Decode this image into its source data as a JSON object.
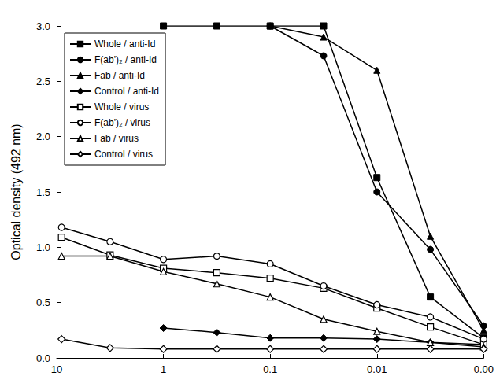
{
  "chart_data": {
    "type": "line",
    "y_label": "Optical density (492 nm)",
    "log": "x",
    "grid": false,
    "legend": "upper left",
    "xlim": [
      10,
      0.001
    ],
    "xticks": [
      10,
      1,
      0.1,
      0.01,
      {
        "value": 0.001,
        "label": "0.00"
      }
    ],
    "ylim": [
      0,
      3
    ],
    "yticks": [
      {
        "value": 0,
        "label": "0.0"
      },
      {
        "value": 0.5,
        "label": "0.5"
      },
      {
        "value": 1,
        "label": "1.0"
      },
      {
        "value": 1.5,
        "label": "1.5"
      },
      {
        "value": 2,
        "label": "2.0"
      },
      {
        "value": 2.5,
        "label": "2.5"
      },
      {
        "value": 3,
        "label": "3.0"
      }
    ],
    "series": [
      {
        "name": "Whole / anti-Id",
        "color": "#000000",
        "marker": "filled-square",
        "x": [
          1,
          0.316,
          0.1,
          0.0316,
          0.01,
          0.00316,
          0.001
        ],
        "values": [
          3.0,
          3.0,
          3.0,
          3.0,
          1.63,
          0.55,
          0.18
        ]
      },
      {
        "name": "F(ab')₂ / anti-Id",
        "color": "#000000",
        "marker": "filled-circle",
        "x": [
          0.1,
          0.0316,
          0.01,
          0.00316,
          0.001
        ],
        "values": [
          3.0,
          2.73,
          1.5,
          0.98,
          0.29
        ]
      },
      {
        "name": "Fab / anti-Id",
        "color": "#000000",
        "marker": "filled-triangle",
        "x": [
          0.1,
          0.0316,
          0.01,
          0.00316,
          0.001
        ],
        "values": [
          3.0,
          2.9,
          2.6,
          1.1,
          0.25
        ]
      },
      {
        "name": "Control / anti-Id",
        "color": "#000000",
        "marker": "filled-diamond",
        "x": [
          1,
          0.316,
          0.1,
          0.0316,
          0.01,
          0.00316,
          0.001
        ],
        "values": [
          0.27,
          0.23,
          0.18,
          0.18,
          0.17,
          0.14,
          0.12
        ]
      },
      {
        "name": "Whole / virus",
        "color": "#000000",
        "marker": "open-square",
        "x": [
          9,
          3.16,
          1,
          0.316,
          0.1,
          0.0316,
          0.01,
          0.00316,
          0.001
        ],
        "values": [
          1.09,
          0.93,
          0.81,
          0.77,
          0.72,
          0.63,
          0.45,
          0.28,
          0.12
        ]
      },
      {
        "name": "F(ab')₂ / virus",
        "color": "#000000",
        "marker": "open-circle",
        "x": [
          9,
          3.16,
          1,
          0.316,
          0.1,
          0.0316,
          0.01,
          0.00316,
          0.001
        ],
        "values": [
          1.18,
          1.05,
          0.89,
          0.92,
          0.85,
          0.65,
          0.48,
          0.37,
          0.17
        ]
      },
      {
        "name": "Fab / virus",
        "color": "#000000",
        "marker": "open-triangle",
        "x": [
          9,
          3.16,
          1,
          0.316,
          0.1,
          0.0316,
          0.01,
          0.00316,
          0.001
        ],
        "values": [
          0.92,
          0.92,
          0.78,
          0.67,
          0.55,
          0.35,
          0.24,
          0.14,
          0.1
        ]
      },
      {
        "name": "Control / virus",
        "color": "#000000",
        "marker": "open-diamond",
        "x": [
          9,
          3.16,
          1,
          0.316,
          0.1,
          0.0316,
          0.01,
          0.00316,
          0.001
        ],
        "values": [
          0.17,
          0.09,
          0.08,
          0.08,
          0.08,
          0.08,
          0.08,
          0.08,
          0.08
        ]
      }
    ]
  }
}
